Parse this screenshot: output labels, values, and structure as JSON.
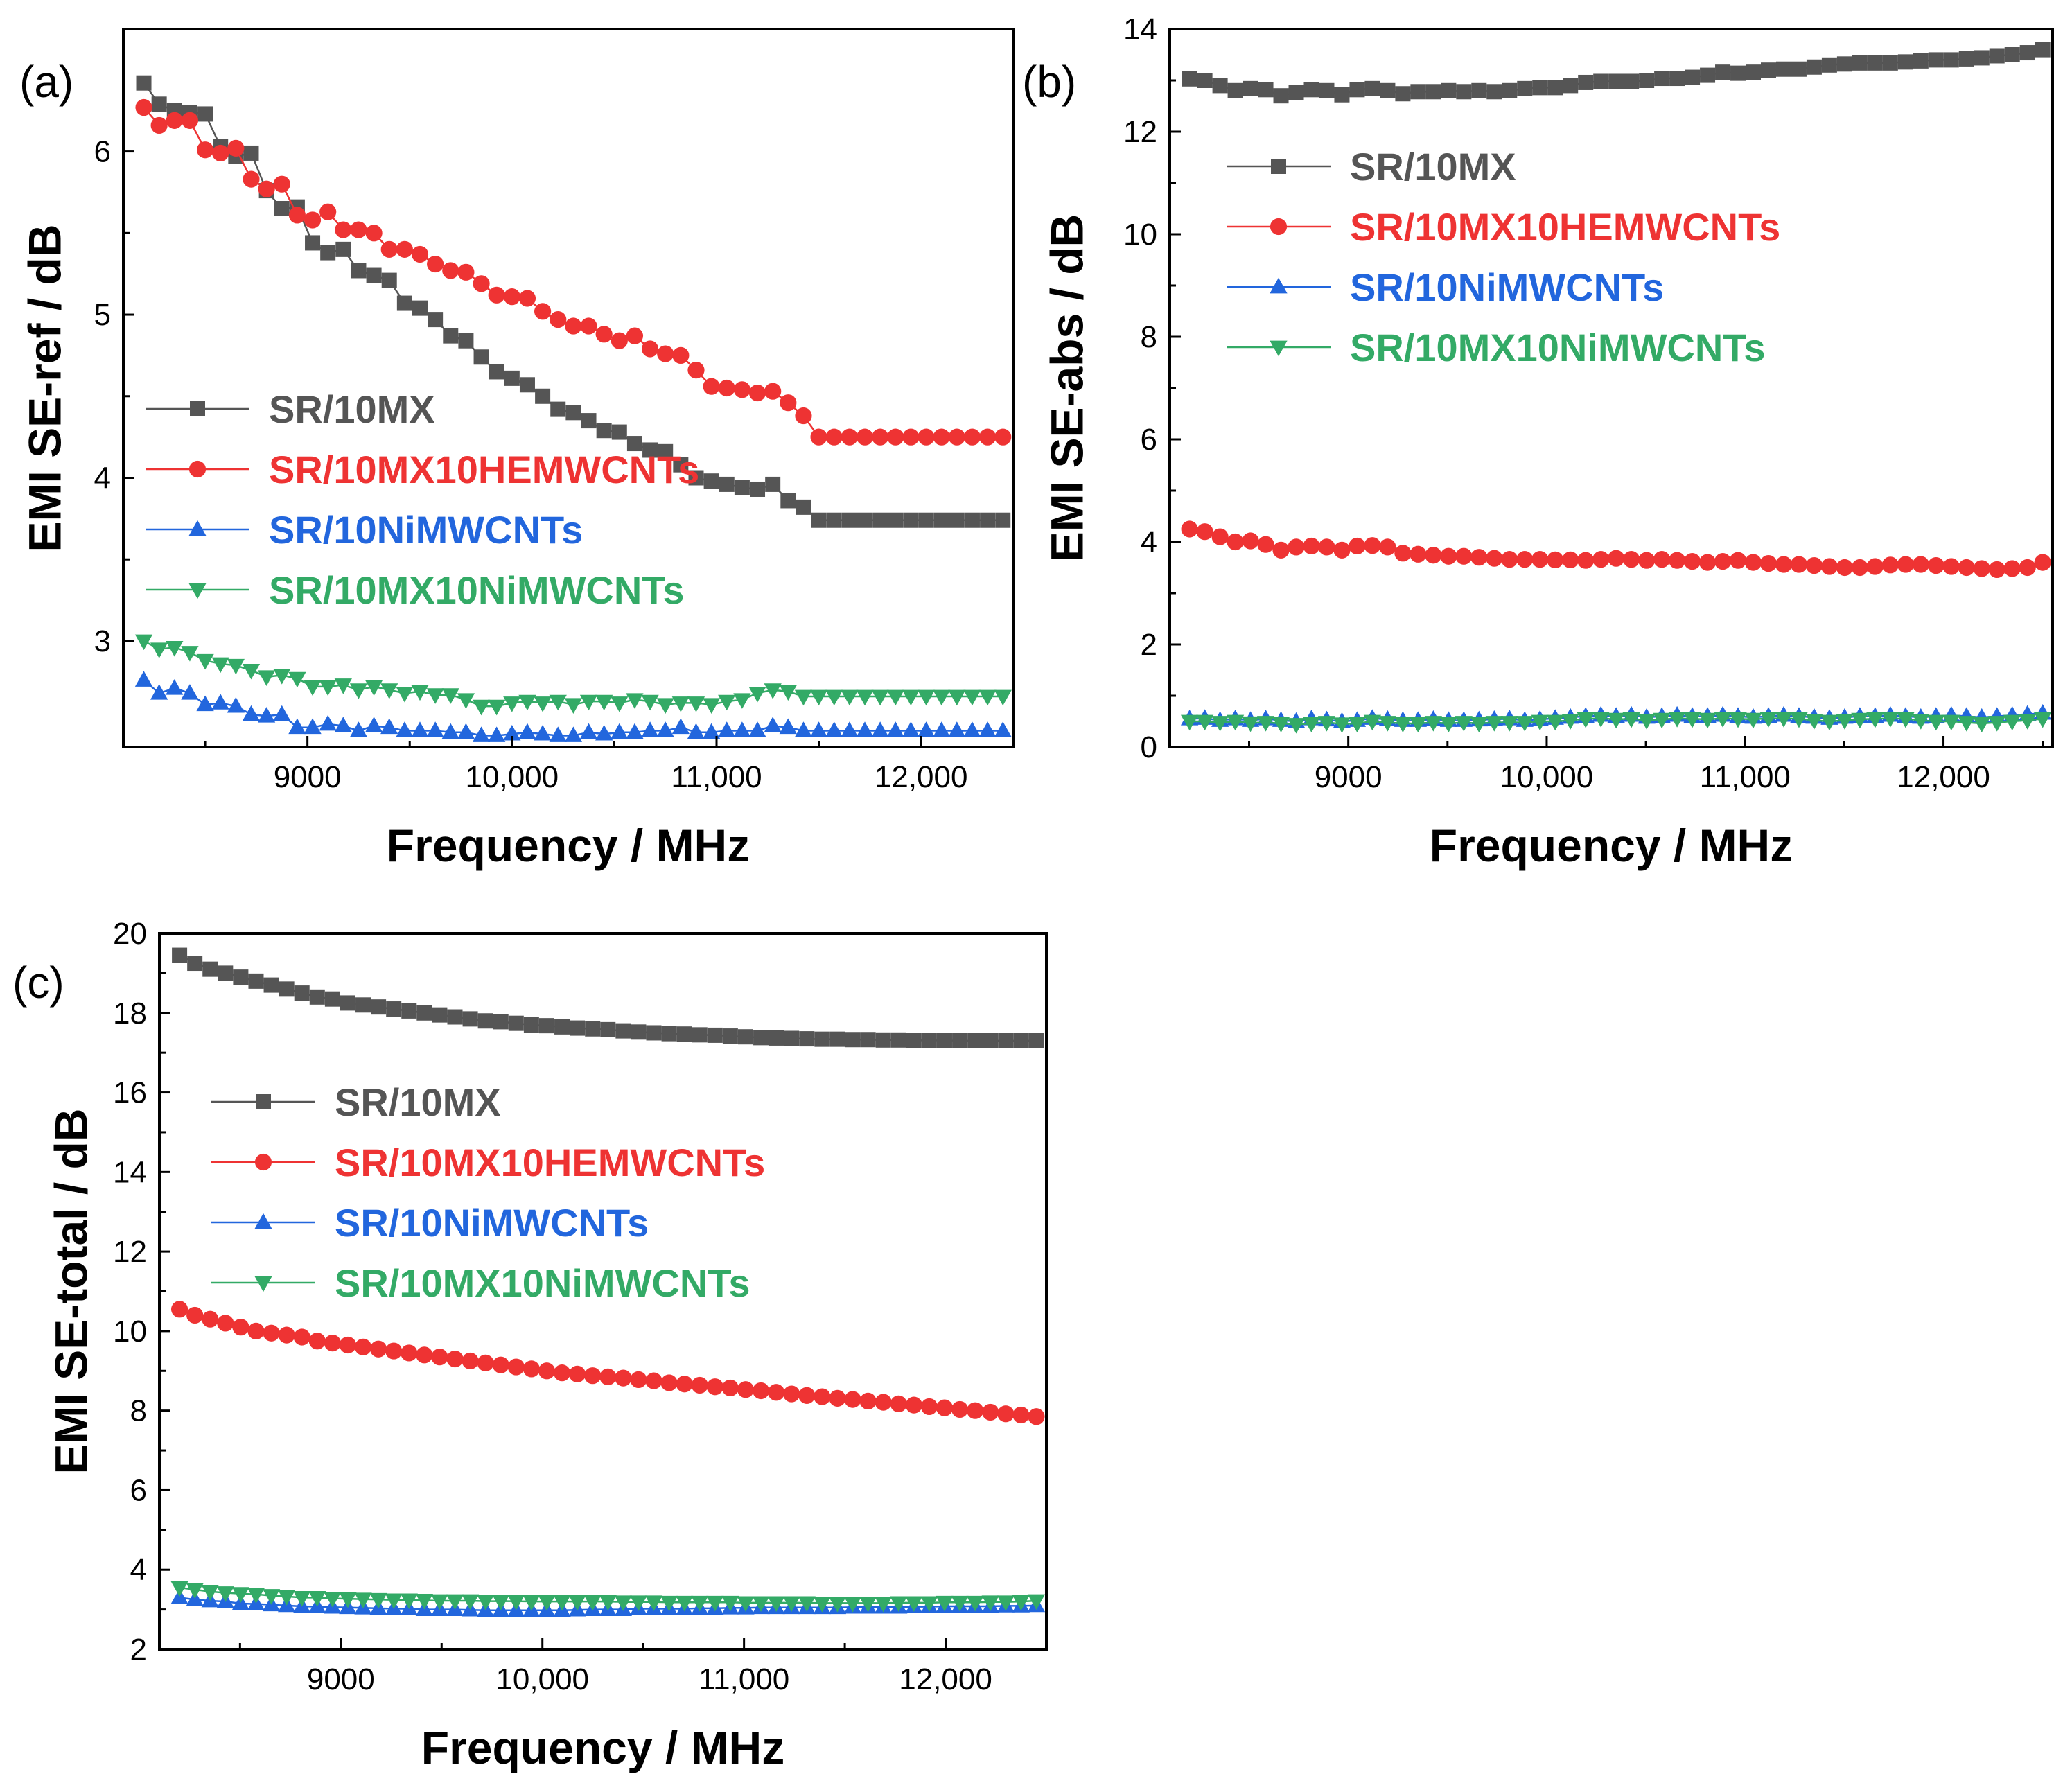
{
  "chart_data": [
    {
      "type": "line",
      "panel_label": "(a)",
      "xlabel": "Frequency / MHz",
      "ylabel": "EMI SE-ref / dB",
      "xlim": [
        8100,
        12450
      ],
      "ylim": [
        2.35,
        6.75
      ],
      "xticks": [
        9000,
        10000,
        11000,
        12000
      ],
      "xtick_labels": [
        "9000",
        "10,000",
        "11,000",
        "12,000"
      ],
      "yticks": [
        3,
        4,
        5,
        6
      ],
      "ytick_labels": [
        "3",
        "4",
        "5",
        "6"
      ],
      "x_start": 8200,
      "x_end": 12400,
      "n_points": 57,
      "legend_position": "center-left",
      "series": [
        {
          "name": "SR/10MX",
          "color": "#555555",
          "marker": "square",
          "values": [
            6.42,
            6.29,
            6.25,
            6.24,
            6.23,
            6.03,
            5.97,
            5.99,
            5.76,
            5.65,
            5.66,
            5.44,
            5.38,
            5.4,
            5.27,
            5.24,
            5.21,
            5.07,
            5.04,
            4.97,
            4.87,
            4.84,
            4.74,
            4.65,
            4.61,
            4.57,
            4.5,
            4.42,
            4.4,
            4.35,
            4.29,
            4.28,
            4.21,
            4.17,
            4.16,
            4.08,
            4.0,
            3.98,
            3.96,
            3.94,
            3.93,
            3.96,
            3.86,
            3.82,
            3.74,
            3.74,
            3.74,
            3.74,
            3.74,
            3.74,
            3.74,
            3.74,
            3.74,
            3.74,
            3.74,
            3.74,
            3.74
          ]
        },
        {
          "name": "SR/10MX10HEMWCNTs",
          "color": "#ee3333",
          "marker": "circle",
          "values": [
            6.27,
            6.16,
            6.19,
            6.19,
            6.01,
            5.99,
            6.02,
            5.83,
            5.77,
            5.8,
            5.61,
            5.58,
            5.63,
            5.52,
            5.52,
            5.5,
            5.4,
            5.4,
            5.37,
            5.31,
            5.27,
            5.26,
            5.19,
            5.12,
            5.11,
            5.1,
            5.02,
            4.97,
            4.93,
            4.93,
            4.88,
            4.84,
            4.87,
            4.79,
            4.76,
            4.75,
            4.66,
            4.56,
            4.55,
            4.54,
            4.52,
            4.53,
            4.46,
            4.38,
            4.25,
            4.25,
            4.25,
            4.25,
            4.25,
            4.25,
            4.25,
            4.25,
            4.25,
            4.25,
            4.25,
            4.25,
            4.25
          ]
        },
        {
          "name": "SR/10NiMWCNTs",
          "color": "#2266dd",
          "marker": "triangle-up",
          "values": [
            2.76,
            2.68,
            2.71,
            2.68,
            2.61,
            2.62,
            2.6,
            2.55,
            2.54,
            2.55,
            2.47,
            2.47,
            2.49,
            2.48,
            2.45,
            2.48,
            2.47,
            2.45,
            2.45,
            2.45,
            2.44,
            2.44,
            2.42,
            2.42,
            2.43,
            2.44,
            2.43,
            2.42,
            2.42,
            2.44,
            2.43,
            2.44,
            2.44,
            2.45,
            2.45,
            2.47,
            2.44,
            2.44,
            2.45,
            2.45,
            2.45,
            2.48,
            2.47,
            2.45,
            2.45,
            2.45,
            2.45,
            2.45,
            2.45,
            2.45,
            2.45,
            2.45,
            2.45,
            2.45,
            2.45,
            2.45,
            2.45
          ]
        },
        {
          "name": "SR/10MX10NiMWCNTs",
          "color": "#33aa66",
          "marker": "triangle-down",
          "values": [
            3.0,
            2.95,
            2.96,
            2.93,
            2.88,
            2.86,
            2.85,
            2.82,
            2.78,
            2.79,
            2.77,
            2.72,
            2.72,
            2.73,
            2.7,
            2.72,
            2.7,
            2.68,
            2.69,
            2.67,
            2.67,
            2.64,
            2.6,
            2.6,
            2.62,
            2.63,
            2.62,
            2.63,
            2.61,
            2.63,
            2.63,
            2.62,
            2.64,
            2.63,
            2.61,
            2.62,
            2.62,
            2.61,
            2.63,
            2.64,
            2.68,
            2.7,
            2.69,
            2.66,
            2.66,
            2.66,
            2.66,
            2.66,
            2.66,
            2.66,
            2.66,
            2.66,
            2.66,
            2.66,
            2.66,
            2.66,
            2.66
          ]
        }
      ]
    },
    {
      "type": "line",
      "panel_label": "(b)",
      "xlabel": "Frequency / MHz",
      "ylabel": "EMI SE-abs / dB",
      "xlim": [
        8100,
        12550
      ],
      "ylim": [
        0,
        14
      ],
      "xticks": [
        9000,
        10000,
        11000,
        12000
      ],
      "xtick_labels": [
        "9000",
        "10,000",
        "11,000",
        "12,000"
      ],
      "yticks": [
        0,
        2,
        4,
        6,
        8,
        10,
        12,
        14
      ],
      "ytick_labels": [
        "0",
        "2",
        "4",
        "6",
        "8",
        "10",
        "12",
        "14"
      ],
      "x_start": 8200,
      "x_end": 12500,
      "n_points": 57,
      "legend_position": "upper-left",
      "series": [
        {
          "name": "SR/10MX",
          "color": "#555555",
          "marker": "square",
          "values": [
            13.03,
            13.0,
            12.9,
            12.8,
            12.84,
            12.82,
            12.7,
            12.76,
            12.82,
            12.8,
            12.72,
            12.82,
            12.84,
            12.8,
            12.74,
            12.78,
            12.78,
            12.8,
            12.78,
            12.8,
            12.78,
            12.8,
            12.84,
            12.86,
            12.86,
            12.9,
            12.96,
            12.98,
            12.98,
            12.98,
            13.0,
            13.04,
            13.04,
            13.06,
            13.1,
            13.16,
            13.14,
            13.16,
            13.2,
            13.22,
            13.22,
            13.26,
            13.3,
            13.32,
            13.34,
            13.34,
            13.34,
            13.36,
            13.38,
            13.4,
            13.4,
            13.42,
            13.44,
            13.48,
            13.5,
            13.54,
            13.6
          ]
        },
        {
          "name": "SR/10MX10HEMWCNTs",
          "color": "#ee3333",
          "marker": "circle",
          "values": [
            4.25,
            4.2,
            4.1,
            4.0,
            4.02,
            3.95,
            3.84,
            3.9,
            3.92,
            3.9,
            3.84,
            3.92,
            3.93,
            3.9,
            3.78,
            3.76,
            3.74,
            3.72,
            3.72,
            3.7,
            3.68,
            3.66,
            3.66,
            3.66,
            3.65,
            3.65,
            3.64,
            3.66,
            3.68,
            3.66,
            3.64,
            3.66,
            3.64,
            3.62,
            3.6,
            3.62,
            3.64,
            3.6,
            3.58,
            3.56,
            3.56,
            3.54,
            3.52,
            3.5,
            3.5,
            3.52,
            3.55,
            3.56,
            3.56,
            3.54,
            3.52,
            3.5,
            3.48,
            3.46,
            3.48,
            3.5,
            3.6
          ]
        },
        {
          "name": "SR/10NiMWCNTs",
          "color": "#2266dd",
          "marker": "triangle-up",
          "values": [
            0.55,
            0.56,
            0.52,
            0.55,
            0.52,
            0.55,
            0.52,
            0.5,
            0.55,
            0.53,
            0.5,
            0.52,
            0.56,
            0.54,
            0.52,
            0.52,
            0.54,
            0.52,
            0.52,
            0.53,
            0.54,
            0.55,
            0.52,
            0.54,
            0.56,
            0.58,
            0.6,
            0.62,
            0.6,
            0.62,
            0.58,
            0.6,
            0.62,
            0.6,
            0.6,
            0.62,
            0.6,
            0.58,
            0.6,
            0.62,
            0.6,
            0.58,
            0.56,
            0.58,
            0.6,
            0.6,
            0.62,
            0.6,
            0.58,
            0.6,
            0.62,
            0.6,
            0.58,
            0.6,
            0.62,
            0.64,
            0.66
          ]
        },
        {
          "name": "SR/10MX10NiMWCNTs",
          "color": "#33aa66",
          "marker": "triangle-down",
          "values": [
            0.5,
            0.5,
            0.48,
            0.5,
            0.47,
            0.48,
            0.46,
            0.44,
            0.46,
            0.48,
            0.45,
            0.46,
            0.5,
            0.48,
            0.46,
            0.46,
            0.48,
            0.46,
            0.48,
            0.46,
            0.48,
            0.48,
            0.48,
            0.5,
            0.5,
            0.52,
            0.55,
            0.56,
            0.54,
            0.55,
            0.52,
            0.54,
            0.56,
            0.55,
            0.54,
            0.56,
            0.55,
            0.54,
            0.56,
            0.56,
            0.55,
            0.52,
            0.5,
            0.52,
            0.54,
            0.55,
            0.56,
            0.55,
            0.52,
            0.5,
            0.5,
            0.48,
            0.46,
            0.48,
            0.5,
            0.52,
            0.55
          ]
        }
      ]
    },
    {
      "type": "line",
      "panel_label": "(c)",
      "xlabel": "Frequency / MHz",
      "ylabel": "EMI SE-total / dB",
      "xlim": [
        8100,
        12500
      ],
      "ylim": [
        2,
        20
      ],
      "xticks": [
        9000,
        10000,
        11000,
        12000
      ],
      "xtick_labels": [
        "9000",
        "10,000",
        "11,000",
        "12,000"
      ],
      "yticks": [
        2,
        4,
        6,
        8,
        10,
        12,
        14,
        16,
        18,
        20
      ],
      "ytick_labels": [
        "2",
        "4",
        "6",
        "8",
        "10",
        "12",
        "14",
        "16",
        "18",
        "20"
      ],
      "x_start": 8200,
      "x_end": 12450,
      "n_points": 57,
      "legend_position": "upper-left",
      "series": [
        {
          "name": "SR/10MX",
          "color": "#555555",
          "marker": "square",
          "values": [
            19.45,
            19.25,
            19.1,
            19.0,
            18.9,
            18.8,
            18.7,
            18.6,
            18.5,
            18.4,
            18.35,
            18.25,
            18.2,
            18.15,
            18.1,
            18.05,
            18.0,
            17.95,
            17.9,
            17.85,
            17.8,
            17.78,
            17.74,
            17.7,
            17.68,
            17.65,
            17.62,
            17.6,
            17.58,
            17.55,
            17.52,
            17.5,
            17.48,
            17.47,
            17.45,
            17.44,
            17.42,
            17.4,
            17.38,
            17.37,
            17.36,
            17.35,
            17.34,
            17.34,
            17.33,
            17.33,
            17.32,
            17.32,
            17.31,
            17.31,
            17.31,
            17.3,
            17.3,
            17.3,
            17.3,
            17.3,
            17.3
          ]
        },
        {
          "name": "SR/10MX10HEMWCNTs",
          "color": "#ee3333",
          "marker": "circle",
          "values": [
            10.55,
            10.4,
            10.3,
            10.2,
            10.1,
            10.0,
            9.95,
            9.9,
            9.85,
            9.75,
            9.7,
            9.65,
            9.6,
            9.55,
            9.5,
            9.45,
            9.4,
            9.35,
            9.3,
            9.25,
            9.2,
            9.15,
            9.1,
            9.05,
            9.0,
            8.95,
            8.92,
            8.88,
            8.85,
            8.82,
            8.78,
            8.75,
            8.7,
            8.67,
            8.64,
            8.6,
            8.57,
            8.53,
            8.5,
            8.46,
            8.42,
            8.38,
            8.35,
            8.31,
            8.28,
            8.24,
            8.21,
            8.17,
            8.14,
            8.1,
            8.07,
            8.03,
            8.0,
            7.96,
            7.92,
            7.89,
            7.85
          ]
        },
        {
          "name": "SR/10NiMWCNTs",
          "color": "#2266dd",
          "marker": "triangle-up",
          "values": [
            3.3,
            3.25,
            3.22,
            3.2,
            3.15,
            3.14,
            3.12,
            3.1,
            3.08,
            3.07,
            3.06,
            3.05,
            3.04,
            3.03,
            3.02,
            3.02,
            3.0,
            3.0,
            3.0,
            2.99,
            2.98,
            2.98,
            2.98,
            2.98,
            2.98,
            2.98,
            2.99,
            3.0,
            3.0,
            3.0,
            3.02,
            3.02,
            3.02,
            3.02,
            3.03,
            3.03,
            3.04,
            3.04,
            3.05,
            3.05,
            3.05,
            3.05,
            3.05,
            3.05,
            3.06,
            3.06,
            3.06,
            3.06,
            3.07,
            3.07,
            3.08,
            3.08,
            3.08,
            3.08,
            3.09,
            3.09,
            3.1
          ]
        },
        {
          "name": "SR/10MX10NiMWCNTs",
          "color": "#33aa66",
          "marker": "triangle-down",
          "values": [
            3.55,
            3.5,
            3.45,
            3.42,
            3.4,
            3.38,
            3.35,
            3.33,
            3.3,
            3.3,
            3.28,
            3.27,
            3.26,
            3.25,
            3.24,
            3.24,
            3.23,
            3.22,
            3.22,
            3.22,
            3.21,
            3.21,
            3.21,
            3.2,
            3.2,
            3.2,
            3.2,
            3.2,
            3.2,
            3.19,
            3.19,
            3.19,
            3.18,
            3.18,
            3.18,
            3.18,
            3.18,
            3.17,
            3.17,
            3.17,
            3.17,
            3.17,
            3.16,
            3.16,
            3.16,
            3.16,
            3.16,
            3.17,
            3.17,
            3.17,
            3.18,
            3.18,
            3.18,
            3.19,
            3.19,
            3.2,
            3.22
          ]
        }
      ]
    }
  ]
}
